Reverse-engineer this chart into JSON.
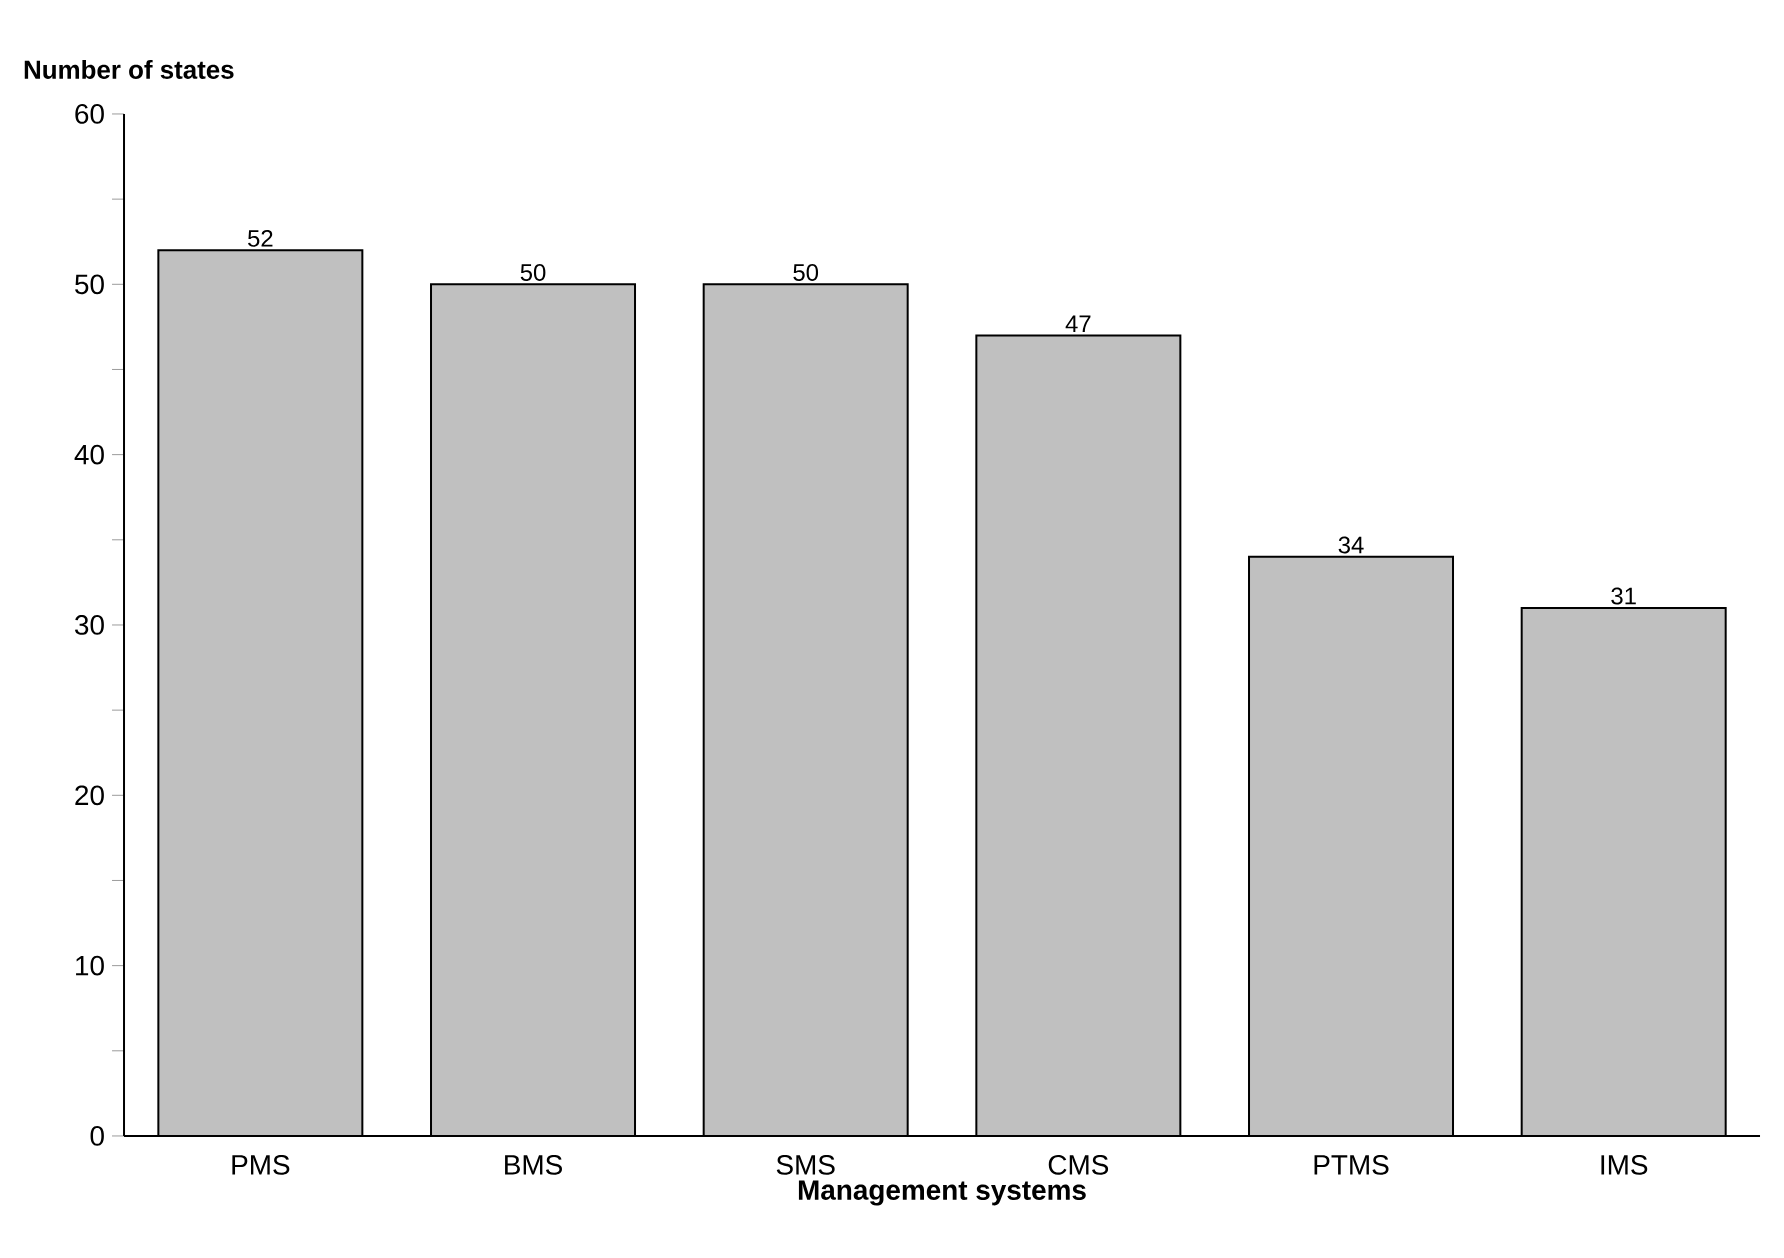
{
  "chart_data": {
    "type": "bar",
    "xlabel": "Management systems",
    "ylabel": "Number of states",
    "categories": [
      "PMS",
      "BMS",
      "SMS",
      "CMS",
      "PTMS",
      "IMS"
    ],
    "values": [
      52,
      50,
      50,
      47,
      34,
      31
    ],
    "color": "#c0c0c0",
    "data_labels": true,
    "grid": false,
    "ylim": [
      0,
      60
    ],
    "yticks": [
      0,
      {
        "value": 5,
        "label": null
      },
      10,
      {
        "value": 15,
        "label": null
      },
      20,
      {
        "value": 25,
        "label": null
      },
      30,
      {
        "value": 35,
        "label": null
      },
      40,
      {
        "value": 45,
        "label": null
      },
      50,
      {
        "value": 55,
        "label": null
      },
      60
    ]
  }
}
